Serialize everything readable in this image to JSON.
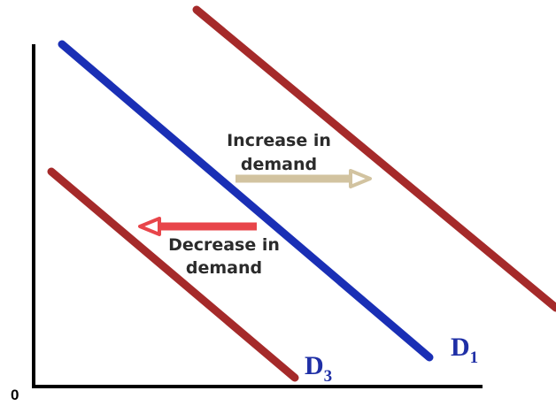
{
  "diagram": {
    "origin_label": "0",
    "curves": [
      {
        "id": "d2",
        "label": "",
        "color": "#a52a2a"
      },
      {
        "id": "d1",
        "label": "D",
        "subscript": "1",
        "color": "#1a2fb5"
      },
      {
        "id": "d3",
        "label": "D",
        "subscript": "3",
        "color": "#a52a2a"
      }
    ],
    "arrows": {
      "increase": {
        "line1": "Increase in",
        "line2": "demand",
        "color": "#d2c3a0"
      },
      "decrease": {
        "line1": "Decrease in",
        "line2": "demand",
        "color": "#e8454a"
      }
    },
    "axis_color": "#000000"
  }
}
